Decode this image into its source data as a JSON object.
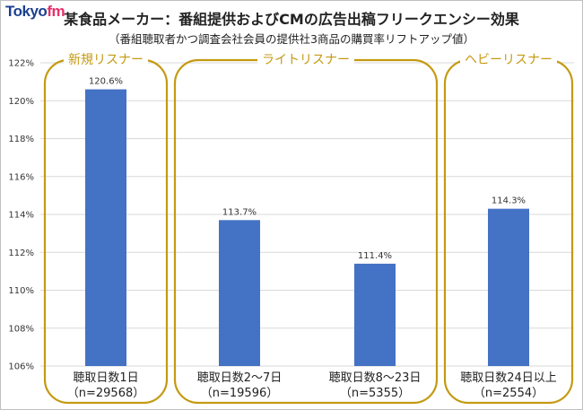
{
  "logo": {
    "text_main": "Tokyo",
    "text_accent": "fm"
  },
  "title": "某食品メーカー：番組提供およびCMの広告出稿フリークエンシー効果",
  "subtitle": "（番組聴取者かつ調査会社会員の提供社3商品の購買率リフトアップ値）",
  "colors": {
    "bar": "#4472c4",
    "group_border": "#c49a12",
    "grid": "#d9d9d9"
  },
  "groups": [
    {
      "label": "新規リスナー"
    },
    {
      "label": "ライトリスナー"
    },
    {
      "label": "ヘビーリスナー"
    }
  ],
  "chart_data": {
    "type": "bar",
    "title": "某食品メーカー：番組提供およびCMの広告出稿フリークエンシー効果",
    "subtitle": "（番組聴取者かつ調査会社会員の提供社3商品の購買率リフトアップ値）",
    "categories": [
      "聴取日数1日",
      "聴取日数2～7日",
      "聴取日数8～23日",
      "聴取日数24日以上"
    ],
    "sample_sizes": [
      "（n=29568）",
      "（n=19596）",
      "（n=5355）",
      "（n=2554）"
    ],
    "values": [
      120.6,
      113.7,
      111.4,
      114.3
    ],
    "data_labels": [
      "120.6%",
      "113.7%",
      "111.4%",
      "114.3%"
    ],
    "ylim": [
      106,
      122
    ],
    "yticks": [
      "106%",
      "108%",
      "110%",
      "112%",
      "114%",
      "116%",
      "118%",
      "120%",
      "122%"
    ],
    "grid": true
  }
}
